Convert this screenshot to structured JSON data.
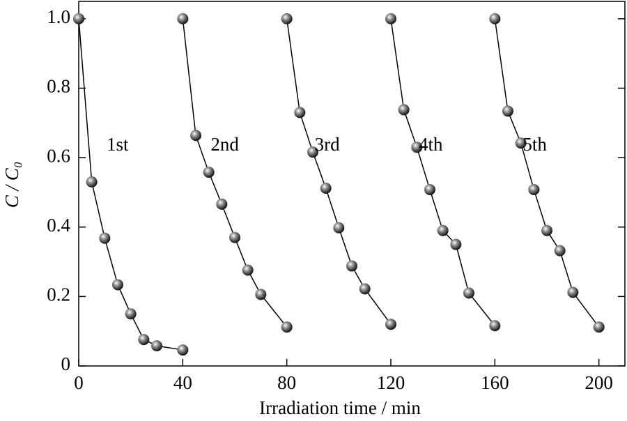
{
  "chart_data": {
    "type": "line",
    "x_label": "Irradiation time / min",
    "y_label": "C / C₀",
    "xlim": [
      0,
      210
    ],
    "xticks": [
      0,
      40,
      80,
      120,
      160,
      200
    ],
    "ylim": [
      0,
      1.05
    ],
    "yticks": [
      0,
      0.2,
      0.4,
      0.6,
      0.8,
      {
        "value": 1,
        "label": "1.0"
      }
    ],
    "color": "#000000",
    "series": [
      {
        "name": "1st",
        "x": [
          0,
          5,
          10,
          15,
          20,
          25,
          30,
          40
        ],
        "values": [
          1.0,
          0.53,
          0.368,
          0.234,
          0.15,
          0.076,
          0.058,
          0.046
        ]
      },
      {
        "name": "2nd",
        "x": [
          40,
          45,
          50,
          55,
          60,
          65,
          70,
          80
        ],
        "values": [
          1.0,
          0.664,
          0.558,
          0.466,
          0.37,
          0.276,
          0.206,
          0.112
        ]
      },
      {
        "name": "3rd",
        "x": [
          80,
          85,
          90,
          95,
          100,
          105,
          110,
          120
        ],
        "values": [
          1.0,
          0.73,
          0.616,
          0.512,
          0.398,
          0.288,
          0.222,
          0.12
        ]
      },
      {
        "name": "4th",
        "x": [
          120,
          125,
          130,
          135,
          140,
          145,
          150,
          160
        ],
        "values": [
          1.0,
          0.738,
          0.63,
          0.508,
          0.39,
          0.35,
          0.21,
          0.116
        ]
      },
      {
        "name": "5th",
        "x": [
          160,
          165,
          170,
          175,
          180,
          185,
          190,
          200
        ],
        "values": [
          1.0,
          0.734,
          0.642,
          0.508,
          0.39,
          0.332,
          0.212,
          0.112
        ]
      }
    ]
  }
}
